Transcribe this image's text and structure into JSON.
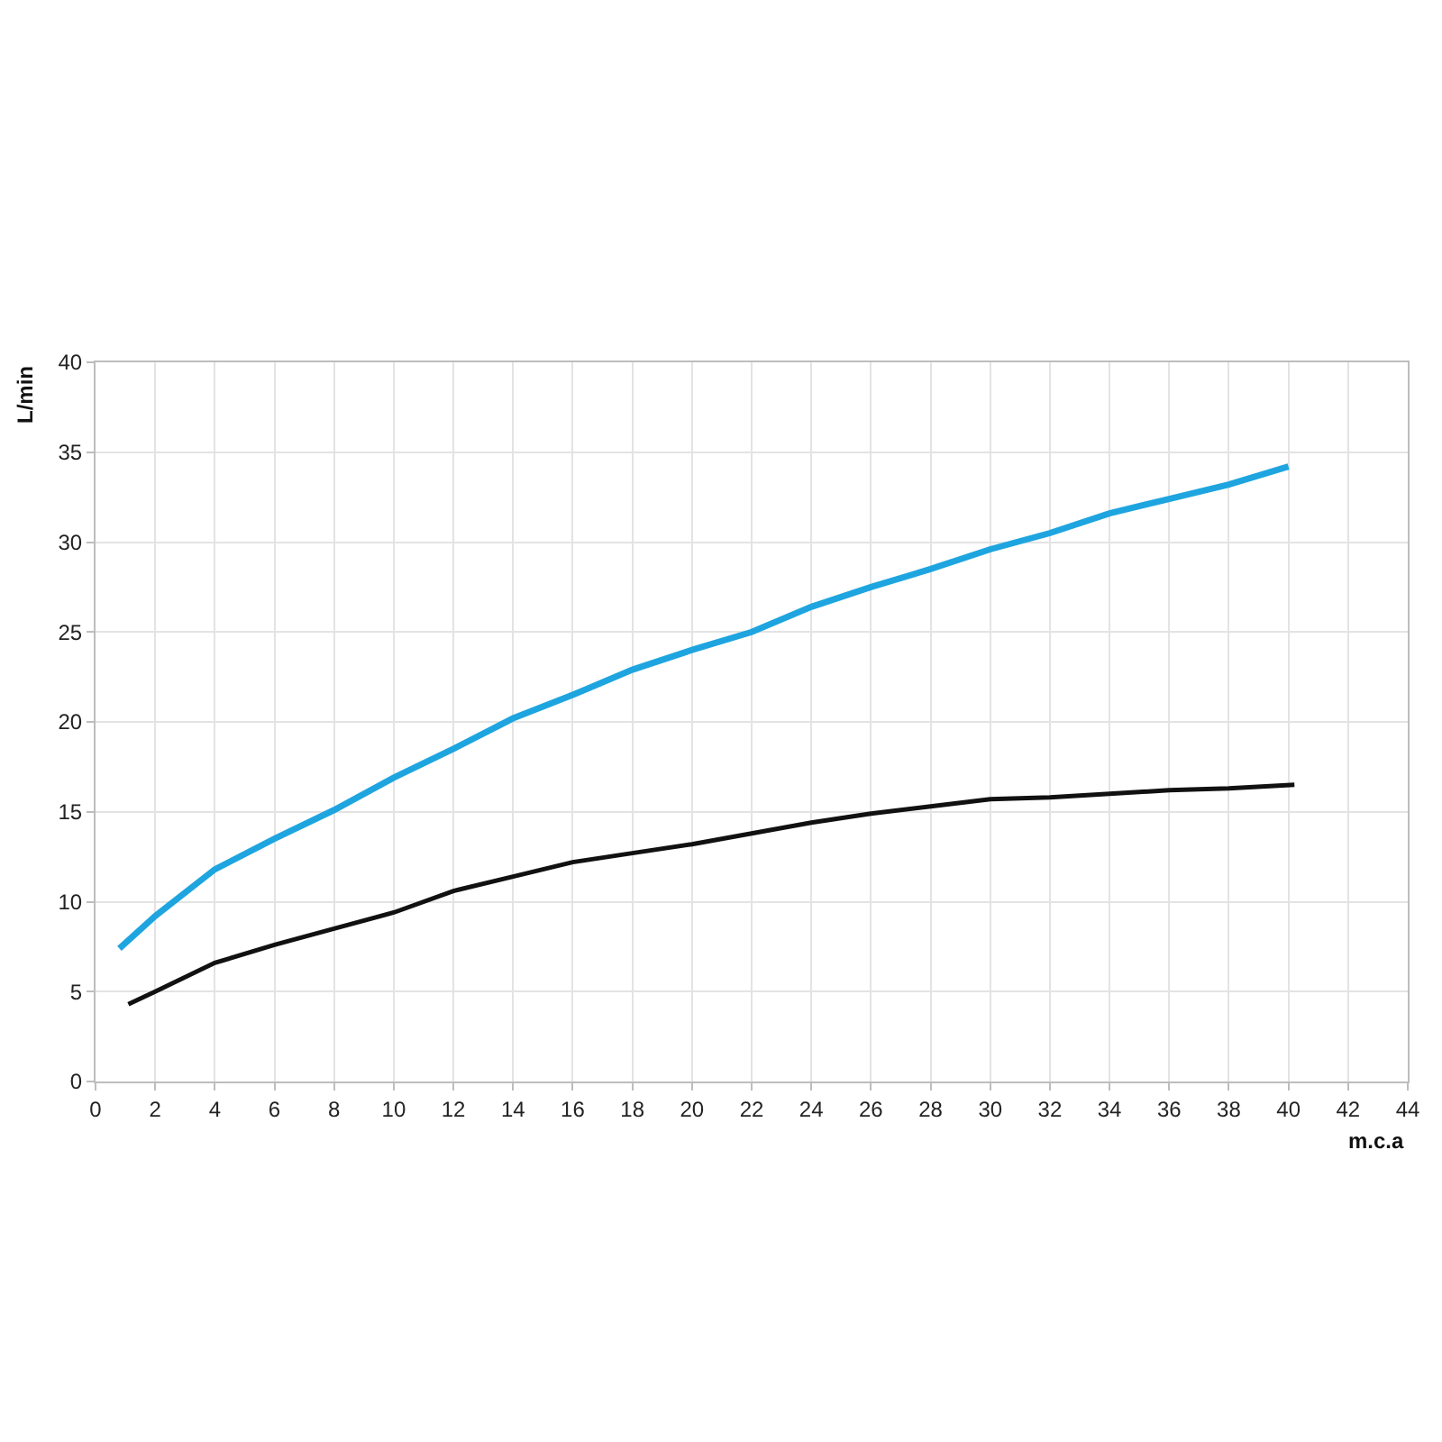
{
  "chart_data": {
    "type": "line",
    "xlabel": "m.c.a",
    "ylabel": "L/min",
    "xlim": [
      0,
      44
    ],
    "xticks": [
      0,
      2,
      4,
      6,
      8,
      10,
      12,
      14,
      16,
      18,
      20,
      22,
      24,
      26,
      28,
      30,
      32,
      34,
      36,
      38,
      40,
      42,
      44
    ],
    "ylim": [
      0,
      40
    ],
    "yticks": [
      0,
      5,
      10,
      15,
      20,
      25,
      30,
      35,
      40
    ],
    "grid": true,
    "marker": "none",
    "line_style": "solid",
    "series": [
      {
        "color": "#1ea5e0",
        "x": [
          0.8,
          2,
          4,
          6,
          8,
          10,
          12,
          14,
          16,
          18,
          20,
          22,
          24,
          26,
          28,
          30,
          32,
          34,
          36,
          38,
          40
        ],
        "values": [
          7.4,
          9.2,
          11.8,
          13.5,
          15.1,
          16.9,
          18.5,
          20.2,
          21.5,
          22.9,
          24.0,
          25.0,
          26.4,
          27.5,
          28.5,
          29.6,
          30.5,
          31.6,
          32.4,
          33.2,
          34.2
        ]
      },
      {
        "color": "#111111",
        "x": [
          1.1,
          2,
          4,
          6,
          8,
          10,
          12,
          14,
          16,
          18,
          20,
          22,
          24,
          26,
          28,
          30,
          32,
          34,
          36,
          38,
          40.2
        ],
        "values": [
          4.3,
          5.0,
          6.6,
          7.6,
          8.5,
          9.4,
          10.6,
          11.4,
          12.2,
          12.7,
          13.2,
          13.8,
          14.4,
          14.9,
          15.3,
          15.7,
          15.8,
          16.0,
          16.2,
          16.3,
          16.5
        ]
      }
    ]
  }
}
